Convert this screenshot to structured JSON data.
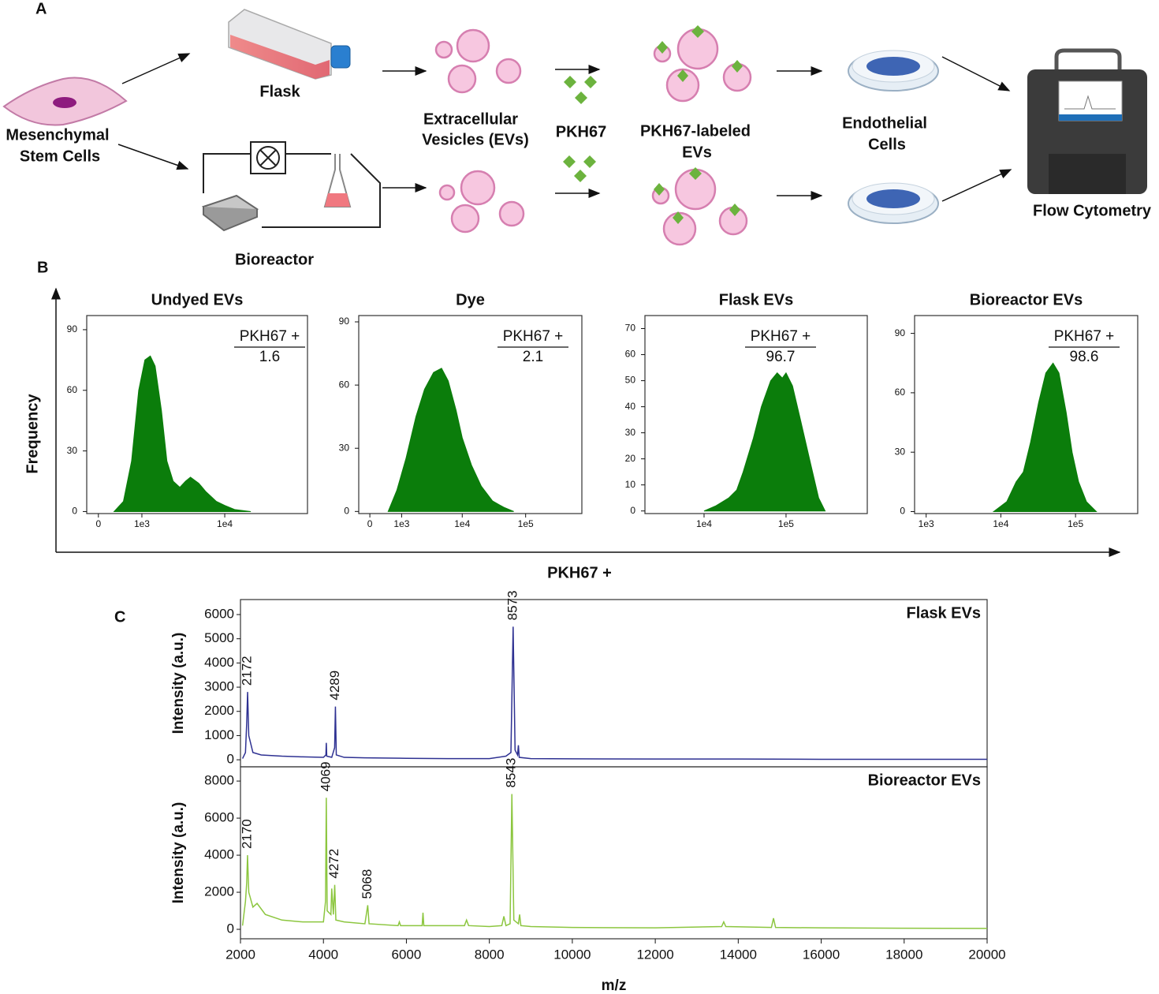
{
  "panel_a": {
    "label": "A",
    "msc": [
      "Mesenchymal",
      "Stem Cells"
    ],
    "flask": "Flask",
    "bioreactor": "Bioreactor",
    "evs": [
      "Extracellular",
      "Vesicles (EVs)"
    ],
    "dye": "PKH67",
    "labeled_evs": [
      "PKH67-labeled",
      "EVs"
    ],
    "endothelial": [
      "Endothelial",
      "Cells"
    ],
    "flow": "Flow Cytometry"
  },
  "panel_b": {
    "label": "B",
    "y_label": "Frequency",
    "x_label": "PKH67 +"
  },
  "panel_c": {
    "label": "C"
  },
  "chart_data": [
    {
      "type": "area",
      "title": "Undyed EVs",
      "gate_label": "PKH67 +",
      "gate_value": 1.6,
      "color": "#0b7d0b",
      "xscale": "logicle",
      "xlim": [
        -220,
        90000
      ],
      "xticks": [
        0,
        {
          "value": 1000,
          "label": "1e3"
        },
        {
          "value": 10000,
          "label": "1e4"
        }
      ],
      "ylim": [
        -1,
        97
      ],
      "yticks": [
        0,
        30,
        60,
        90
      ],
      "x": [
        300,
        500,
        700,
        900,
        1100,
        1300,
        1500,
        1800,
        2100,
        2500,
        3000,
        3500,
        4000,
        5000,
        6000,
        8000,
        10000,
        13000,
        20000
      ],
      "values": [
        0,
        5,
        25,
        60,
        75,
        77,
        72,
        50,
        25,
        15,
        12,
        15,
        17,
        14,
        10,
        5,
        3,
        1,
        0
      ]
    },
    {
      "type": "area",
      "title": "Dye",
      "gate_label": "PKH67 +",
      "gate_value": 2.1,
      "color": "#0b7d0b",
      "xscale": "logicle",
      "xlim": [
        -290,
        770000
      ],
      "xticks": [
        0,
        {
          "value": 1000,
          "label": "1e3"
        },
        {
          "value": 10000,
          "label": "1e4"
        },
        {
          "value": 100000,
          "label": "1e5"
        }
      ],
      "ylim": [
        -1,
        93
      ],
      "yticks": [
        0,
        30,
        60,
        90
      ],
      "x": [
        500,
        800,
        1200,
        1800,
        2500,
        3500,
        4700,
        6000,
        8000,
        10000,
        14000,
        20000,
        30000,
        45000,
        65000
      ],
      "values": [
        0,
        10,
        25,
        45,
        58,
        66,
        68,
        62,
        48,
        35,
        22,
        12,
        5,
        2,
        0
      ]
    },
    {
      "type": "area",
      "title": "Flask EVs",
      "gate_label": "PKH67 +",
      "gate_value": 96.7,
      "color": "#0b7d0b",
      "xscale": "log",
      "xlim": [
        1900,
        980000
      ],
      "xticks": [
        {
          "value": 10000,
          "label": "1e4"
        },
        {
          "value": 100000,
          "label": "1e5"
        }
      ],
      "ylim": [
        -1,
        75
      ],
      "yticks": [
        0,
        10,
        20,
        30,
        40,
        50,
        60,
        70
      ],
      "x": [
        10000,
        14000,
        20000,
        25000,
        30000,
        40000,
        50000,
        65000,
        78000,
        90000,
        100000,
        120000,
        150000,
        200000,
        250000,
        300000
      ],
      "values": [
        0,
        2,
        5,
        8,
        15,
        28,
        40,
        50,
        53,
        51,
        53,
        48,
        35,
        18,
        5,
        0
      ]
    },
    {
      "type": "area",
      "title": "Bioreactor EVs",
      "gate_label": "PKH67 +",
      "gate_value": 98.6,
      "color": "#0b7d0b",
      "xscale": "log",
      "xlim": [
        700,
        680000
      ],
      "xticks": [
        {
          "value": 1000,
          "label": "1e3"
        },
        {
          "value": 10000,
          "label": "1e4"
        },
        {
          "value": 100000,
          "label": "1e5"
        }
      ],
      "ylim": [
        -1,
        99
      ],
      "yticks": [
        0,
        30,
        60,
        90
      ],
      "x": [
        8000,
        12000,
        16000,
        20000,
        25000,
        32000,
        40000,
        50000,
        60000,
        75000,
        90000,
        110000,
        140000,
        190000
      ],
      "values": [
        0,
        5,
        15,
        20,
        35,
        55,
        70,
        75,
        70,
        50,
        30,
        15,
        5,
        0
      ]
    },
    {
      "type": "line",
      "title": "Flask EVs",
      "y_label": "Intensity (a.u.)",
      "color": "#2e3192",
      "xlim": [
        2000,
        20000
      ],
      "ylim": [
        -290,
        6620
      ],
      "yticks": [
        0,
        1000,
        2000,
        3000,
        4000,
        5000,
        6000
      ],
      "peak_labels": [
        2172,
        4289,
        8573
      ],
      "x": [
        2050,
        2120,
        2150,
        2172,
        2200,
        2300,
        2500,
        3000,
        3500,
        4000,
        4060,
        4069,
        4080,
        4200,
        4270,
        4289,
        4310,
        4500,
        5000,
        6000,
        7000,
        8000,
        8400,
        8520,
        8573,
        8620,
        8680,
        8700,
        8720,
        9000,
        10000,
        12000,
        14000,
        16000,
        18000,
        20000
      ],
      "values": [
        50,
        300,
        1500,
        2800,
        1000,
        300,
        200,
        150,
        120,
        100,
        200,
        700,
        150,
        100,
        500,
        2200,
        200,
        100,
        80,
        60,
        50,
        50,
        150,
        300,
        5500,
        400,
        200,
        600,
        100,
        50,
        40,
        30,
        30,
        20,
        20,
        20
      ]
    },
    {
      "type": "line",
      "title": "Bioreactor EVs",
      "y_label": "Intensity (a.u.)",
      "x_label": "m/z",
      "color": "#8cc63f",
      "xlim": [
        2000,
        20000
      ],
      "ylim": [
        -510,
        8770
      ],
      "yticks": [
        0,
        2000,
        4000,
        6000,
        8000
      ],
      "xticks": [
        2000,
        4000,
        6000,
        8000,
        10000,
        12000,
        14000,
        16000,
        18000,
        20000
      ],
      "peak_labels": [
        2170,
        4069,
        4272,
        5068,
        8543
      ],
      "x": [
        2050,
        2120,
        2150,
        2170,
        2200,
        2300,
        2400,
        2600,
        3000,
        3500,
        4000,
        4050,
        4069,
        4090,
        4180,
        4200,
        4240,
        4272,
        4300,
        4500,
        5000,
        5068,
        5100,
        5800,
        5830,
        5860,
        6380,
        6400,
        6420,
        7000,
        7400,
        7450,
        7500,
        8000,
        8300,
        8350,
        8400,
        8500,
        8543,
        8590,
        8700,
        8730,
        8760,
        9000,
        10000,
        12000,
        13600,
        13650,
        13700,
        14800,
        14850,
        14900,
        16000,
        18000,
        20000
      ],
      "values": [
        200,
        1500,
        2500,
        4000,
        2000,
        1200,
        1400,
        800,
        500,
        400,
        400,
        1500,
        7100,
        1000,
        800,
        2200,
        800,
        2400,
        500,
        400,
        300,
        1300,
        300,
        200,
        400,
        200,
        200,
        900,
        200,
        200,
        200,
        500,
        200,
        150,
        200,
        700,
        200,
        300,
        7300,
        500,
        300,
        800,
        200,
        150,
        100,
        80,
        150,
        400,
        150,
        100,
        600,
        100,
        80,
        60,
        50
      ]
    }
  ]
}
